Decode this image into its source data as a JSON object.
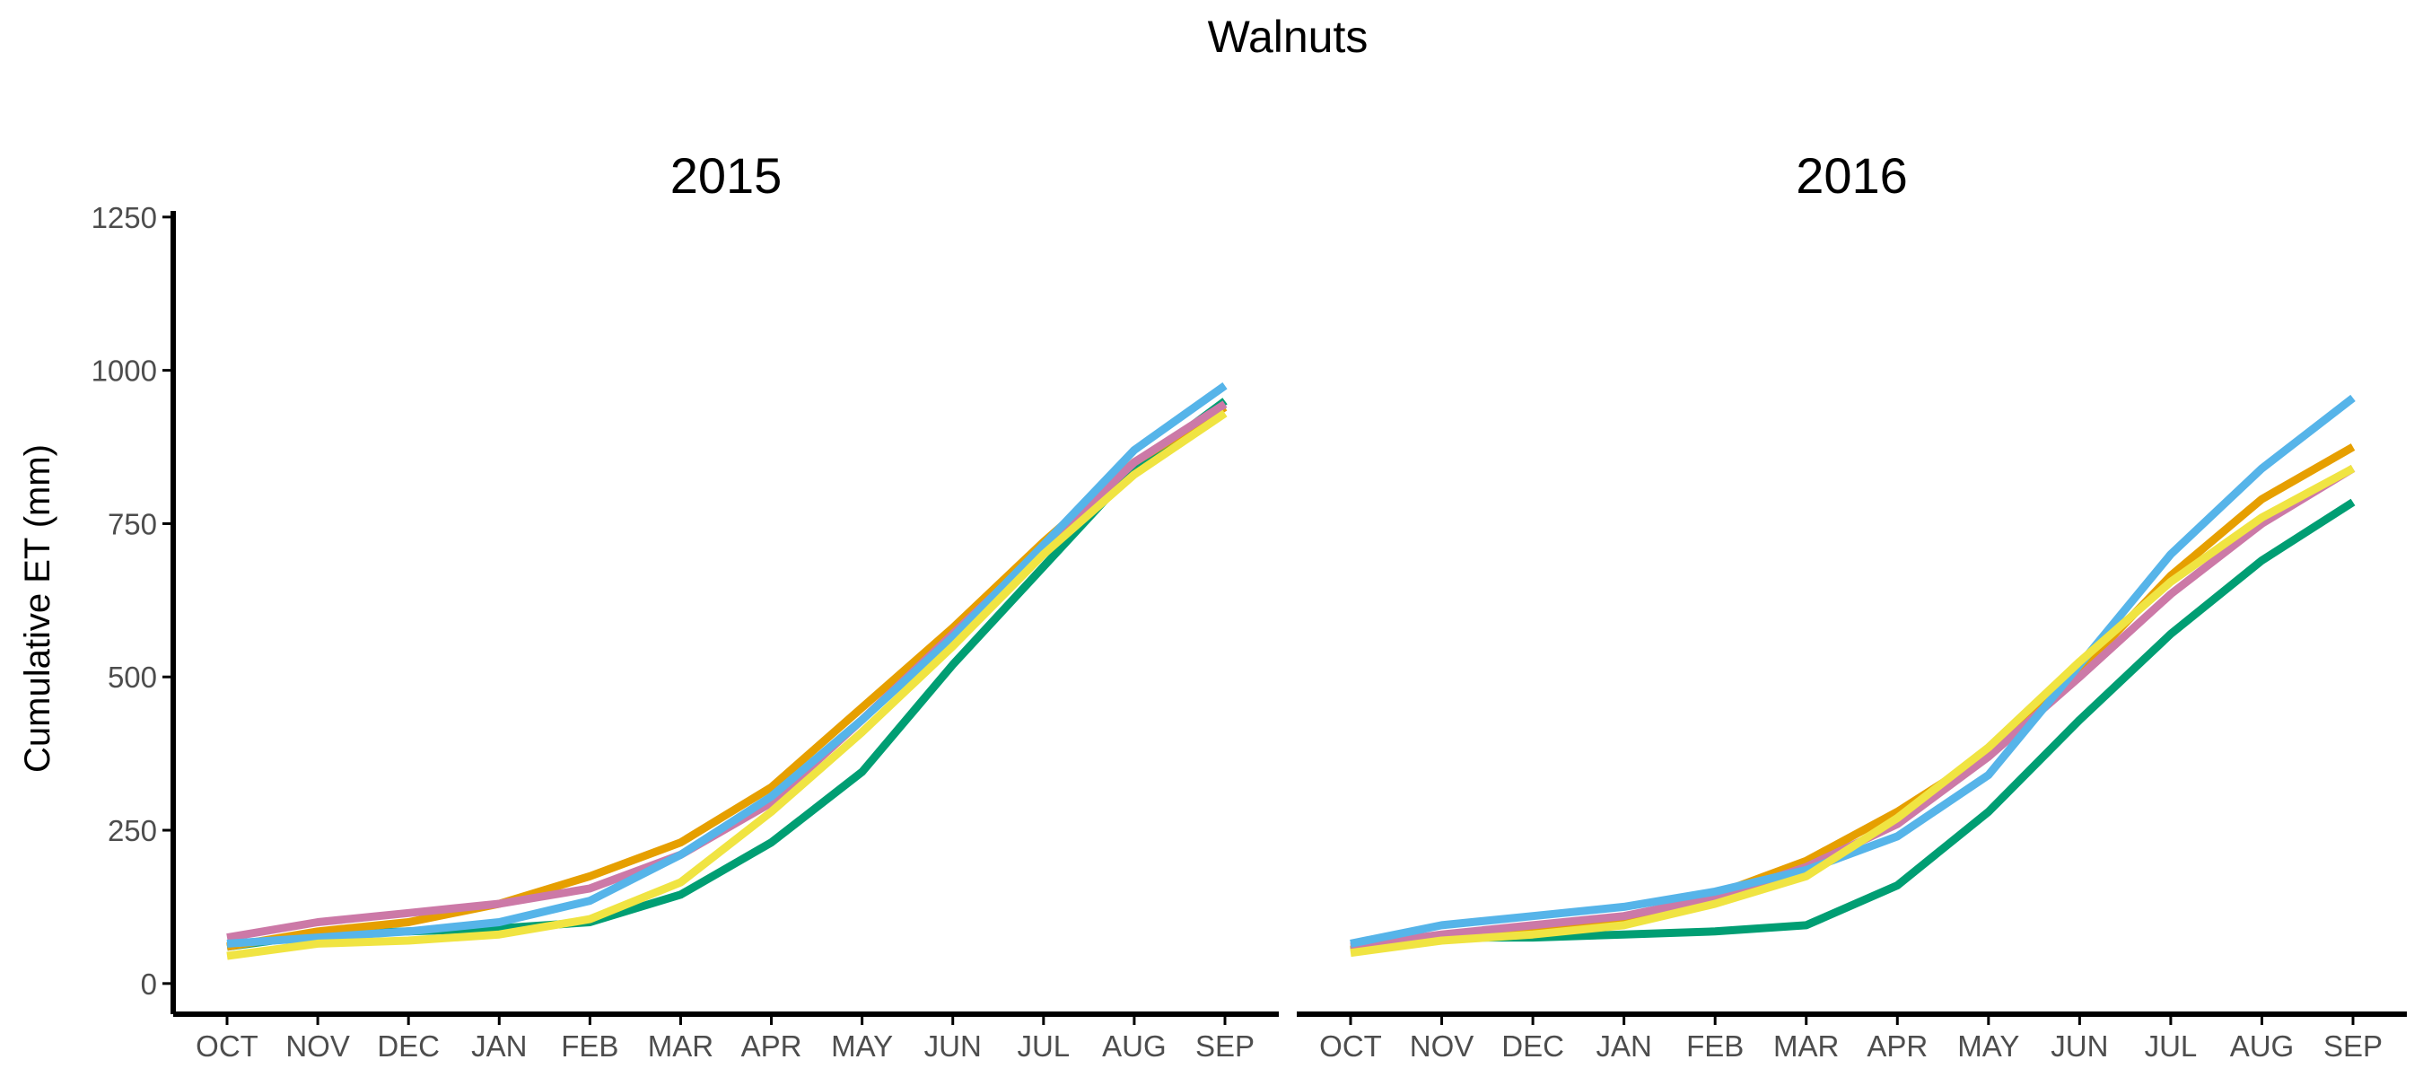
{
  "chart_data": {
    "type": "line",
    "title": "Walnuts",
    "ylabel": "Cumulative ET (mm)",
    "xlabel": "",
    "ylim": [
      -50,
      1260
    ],
    "yticks": [
      0,
      250,
      500,
      750,
      1000,
      1250
    ],
    "categories": [
      "OCT",
      "NOV",
      "DEC",
      "JAN",
      "FEB",
      "MAR",
      "APR",
      "MAY",
      "JUN",
      "JUL",
      "AUG",
      "SEP"
    ],
    "legend": "none",
    "grid": false,
    "panels": [
      {
        "title": "2015",
        "series": [
          {
            "color": "#009E73",
            "values": [
              60,
              80,
              85,
              90,
              100,
              145,
              230,
              345,
              520,
              680,
              840,
              950
            ]
          },
          {
            "color": "#E69F00",
            "values": [
              60,
              85,
              100,
              130,
              175,
              230,
              320,
              450,
              580,
              720,
              850,
              940
            ]
          },
          {
            "color": "#CC79A7",
            "values": [
              75,
              100,
              115,
              130,
              155,
              210,
              295,
              430,
              570,
              710,
              850,
              945
            ]
          },
          {
            "color": "#56B4E9",
            "values": [
              65,
              75,
              85,
              100,
              135,
              210,
              305,
              430,
              565,
              715,
              870,
              975
            ]
          },
          {
            "color": "#F0E442",
            "values": [
              45,
              65,
              70,
              80,
              105,
              165,
              280,
              410,
              550,
              700,
              830,
              930
            ]
          }
        ]
      },
      {
        "title": "2016",
        "series": [
          {
            "color": "#009E73",
            "values": [
              55,
              75,
              75,
              80,
              85,
              95,
              160,
              280,
              430,
              570,
              690,
              785
            ]
          },
          {
            "color": "#E69F00",
            "values": [
              55,
              75,
              85,
              100,
              145,
              200,
              280,
              375,
              510,
              665,
              790,
              875
            ]
          },
          {
            "color": "#CC79A7",
            "values": [
              60,
              80,
              95,
              110,
              140,
              190,
              260,
              370,
              500,
              635,
              750,
              840
            ]
          },
          {
            "color": "#56B4E9",
            "values": [
              65,
              95,
              110,
              125,
              150,
              185,
              240,
              340,
              520,
              700,
              840,
              955
            ]
          },
          {
            "color": "#F0E442",
            "values": [
              50,
              70,
              80,
              95,
              130,
              175,
              270,
              385,
              525,
              655,
              760,
              840
            ]
          }
        ]
      }
    ]
  }
}
